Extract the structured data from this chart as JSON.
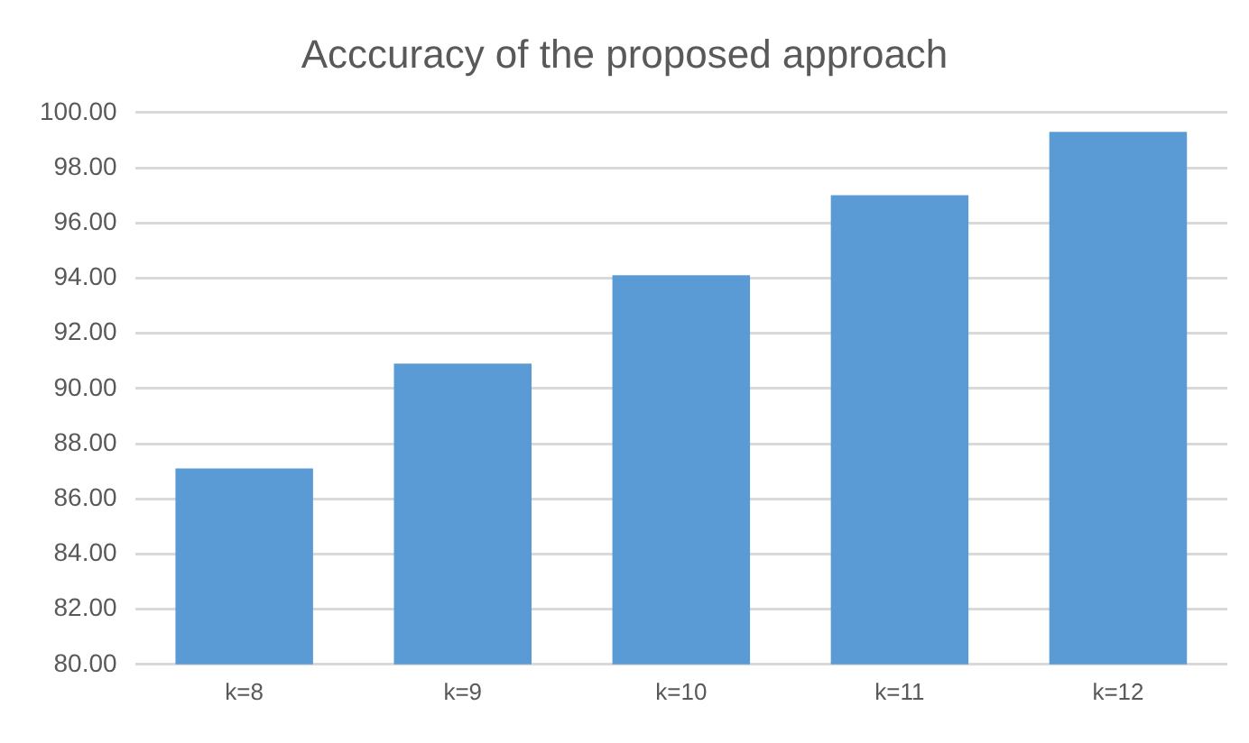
{
  "chart_data": {
    "type": "bar",
    "title": "Acccuracy of the proposed approach",
    "categories": [
      "k=8",
      "k=9",
      "k=10",
      "k=11",
      "k=12"
    ],
    "values": [
      87.1,
      90.9,
      94.1,
      97.0,
      99.3
    ],
    "color": "#5b9bd5",
    "ylim": [
      80,
      100
    ],
    "yticks": [
      {
        "value": 80,
        "label": "80.00"
      },
      {
        "value": 82,
        "label": "82.00"
      },
      {
        "value": 84,
        "label": "84.00"
      },
      {
        "value": 86,
        "label": "86.00"
      },
      {
        "value": 88,
        "label": "88.00"
      },
      {
        "value": 90,
        "label": "90.00"
      },
      {
        "value": 92,
        "label": "92.00"
      },
      {
        "value": 94,
        "label": "94.00"
      },
      {
        "value": 96,
        "label": "96.00"
      },
      {
        "value": 98,
        "label": "98.00"
      },
      {
        "value": 100,
        "label": "100.00"
      }
    ],
    "grid": "y",
    "legend": false
  }
}
